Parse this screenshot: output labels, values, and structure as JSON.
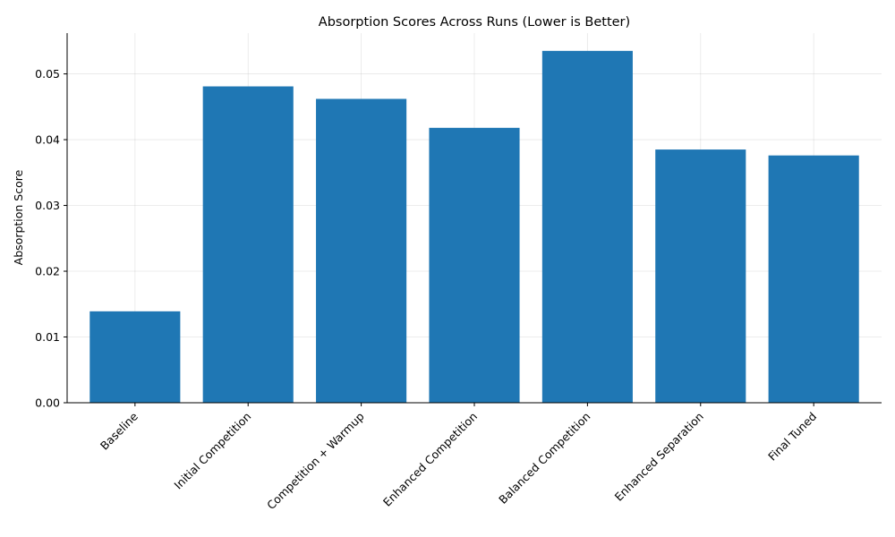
{
  "chart_data": {
    "type": "bar",
    "title": "Absorption Scores Across Runs (Lower is Better)",
    "xlabel": "",
    "ylabel": "Absorption Score",
    "categories": [
      "Baseline",
      "Initial Competition",
      "Competition + Warmup",
      "Enhanced Competition",
      "Balanced Competition",
      "Enhanced Separation",
      "Final Tuned"
    ],
    "values": [
      0.0139,
      0.0481,
      0.0462,
      0.0418,
      0.0535,
      0.0385,
      0.0376
    ],
    "ylim": [
      0,
      0.0562
    ],
    "yticks": [
      0.0,
      0.01,
      0.02,
      0.03,
      0.04,
      0.05
    ],
    "ytick_labels": [
      "0.00",
      "0.01",
      "0.02",
      "0.03",
      "0.04",
      "0.05"
    ],
    "grid": true,
    "bar_color": "#1f77b4"
  }
}
